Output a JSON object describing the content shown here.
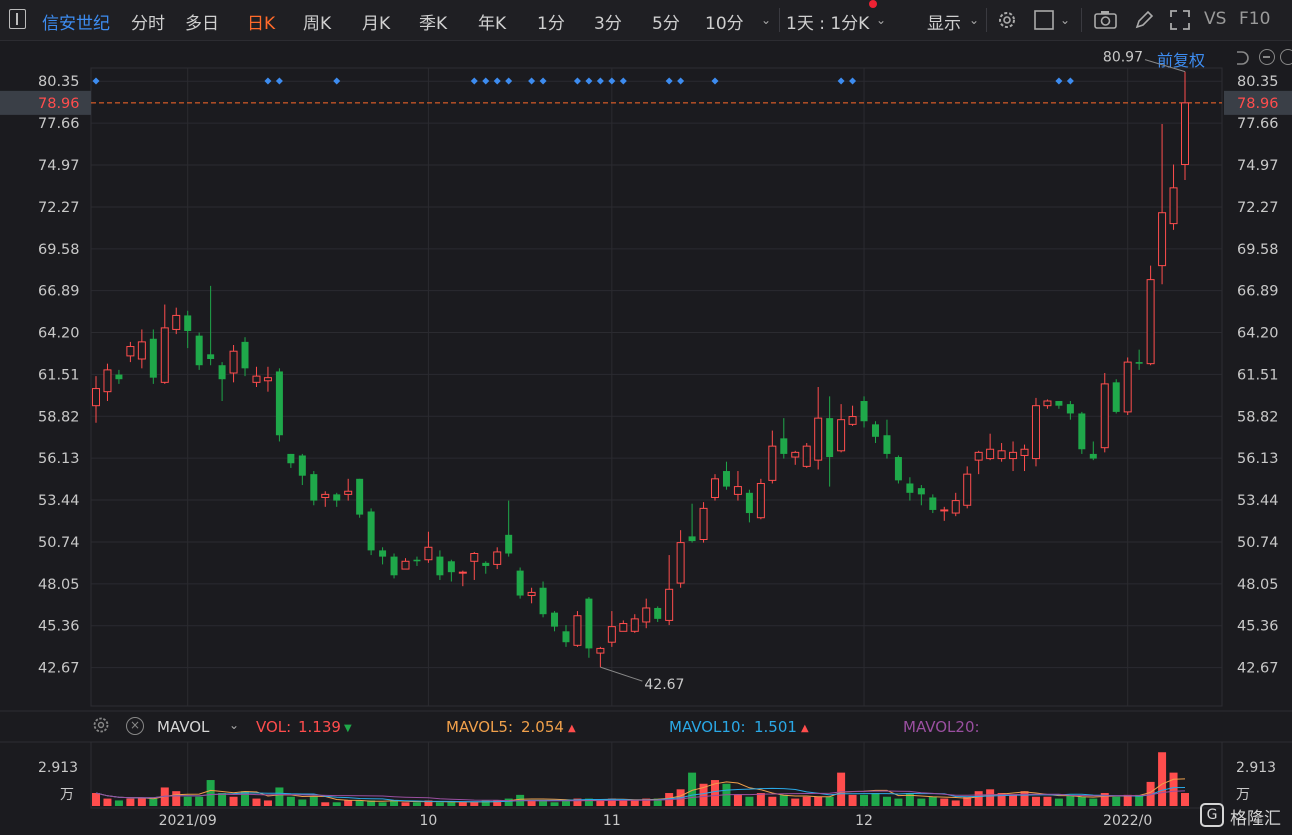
{
  "toolbar": {
    "stock_name": "信安世纪",
    "periods": [
      "分时",
      "多日",
      "日K",
      "周K",
      "月K",
      "季K",
      "年K",
      "1分",
      "3分",
      "5分",
      "10分"
    ],
    "active_period": "日K",
    "interval_selector": "1天 : 1分K",
    "display_label": "显示",
    "vs_label": "VS",
    "f10_label": "F10"
  },
  "adjust_label": "前复权",
  "volume_panel": {
    "indicator": "MAVOL",
    "vol_label": "VOL:",
    "vol_value": "1.139",
    "mavol5_label": "MAVOL5:",
    "mavol5_value": "2.054",
    "mavol10_label": "MAVOL10:",
    "mavol10_value": "1.501",
    "mavol20_label": "MAVOL20:",
    "unit_top": "2.913",
    "unit_bottom": "万",
    "colors": {
      "vol": "#ff4d4d",
      "mavol5": "#f0a04b",
      "mavol10": "#2aa8e6",
      "mavol20": "#9a4fa0"
    }
  },
  "logo_text": "格隆汇",
  "chart_data": {
    "type": "candlestick",
    "y_ticks": [
      "80.35",
      "77.66",
      "74.97",
      "72.27",
      "69.58",
      "66.89",
      "64.20",
      "61.51",
      "58.82",
      "56.13",
      "53.44",
      "50.74",
      "48.05",
      "45.36",
      "42.67"
    ],
    "ylim": [
      40.2,
      83.0
    ],
    "current_price": "78.96",
    "high_label": "80.97",
    "low_label": "42.67",
    "x_ticks": [
      "2021/09",
      "10",
      "11",
      "12",
      "2022/0"
    ],
    "x_tick_candle_index": [
      8,
      29,
      45,
      67,
      90
    ],
    "up_color": "#ff4d4d",
    "down_color": "#1fa84a",
    "candles": [
      [
        59.5,
        60.6,
        58.4,
        61.4
      ],
      [
        60.4,
        61.8,
        59.8,
        62.2
      ],
      [
        61.5,
        61.2,
        60.9,
        61.8
      ],
      [
        62.7,
        63.3,
        62.3,
        63.6
      ],
      [
        62.5,
        63.6,
        61.9,
        64.4
      ],
      [
        63.8,
        61.3,
        60.9,
        64.4
      ],
      [
        61.0,
        64.5,
        60.9,
        66.0
      ],
      [
        64.4,
        65.3,
        64.1,
        65.8
      ],
      [
        65.3,
        64.3,
        63.2,
        65.6
      ],
      [
        64.0,
        62.1,
        61.8,
        64.2
      ],
      [
        62.8,
        62.5,
        62.1,
        67.2
      ],
      [
        62.1,
        61.2,
        59.8,
        62.3
      ],
      [
        61.6,
        63.0,
        61.0,
        63.4
      ],
      [
        63.6,
        61.9,
        61.4,
        63.9
      ],
      [
        61.0,
        61.4,
        60.7,
        62.0
      ],
      [
        61.1,
        61.3,
        60.4,
        62.0
      ],
      [
        61.7,
        57.6,
        57.2,
        61.9
      ],
      [
        56.4,
        55.8,
        55.5,
        56.4
      ],
      [
        56.3,
        55.0,
        54.4,
        56.4
      ],
      [
        55.1,
        53.4,
        53.1,
        55.3
      ],
      [
        53.6,
        53.8,
        53.0,
        54.0
      ],
      [
        53.8,
        53.4,
        53.0,
        53.9
      ],
      [
        53.8,
        54.0,
        53.4,
        54.8
      ],
      [
        54.8,
        52.5,
        52.3,
        54.8
      ],
      [
        52.7,
        50.2,
        49.9,
        52.9
      ],
      [
        50.2,
        49.8,
        49.3,
        50.4
      ],
      [
        49.8,
        48.6,
        48.4,
        50.0
      ],
      [
        49.0,
        49.5,
        49.0,
        49.7
      ],
      [
        49.6,
        49.5,
        49.2,
        49.8
      ],
      [
        49.6,
        50.4,
        49.4,
        51.4
      ],
      [
        49.8,
        48.6,
        48.3,
        50.2
      ],
      [
        49.5,
        48.8,
        48.2,
        49.6
      ],
      [
        48.8,
        48.8,
        47.9,
        48.9
      ],
      [
        49.5,
        50.0,
        48.3,
        50.1
      ],
      [
        49.4,
        49.2,
        48.7,
        49.5
      ],
      [
        49.3,
        50.1,
        49.0,
        50.4
      ],
      [
        51.2,
        50.0,
        49.8,
        53.4
      ],
      [
        48.9,
        47.3,
        47.1,
        49.1
      ],
      [
        47.3,
        47.5,
        46.8,
        47.8
      ],
      [
        47.8,
        46.1,
        45.9,
        48.2
      ],
      [
        46.2,
        45.3,
        45.0,
        46.3
      ],
      [
        45.0,
        44.3,
        44.0,
        45.4
      ],
      [
        44.1,
        46.0,
        44.0,
        46.3
      ],
      [
        47.1,
        43.9,
        43.3,
        47.2
      ],
      [
        43.6,
        43.9,
        42.7,
        44.0
      ],
      [
        44.3,
        45.3,
        44.0,
        46.3
      ],
      [
        45.0,
        45.5,
        45.0,
        45.7
      ],
      [
        45.0,
        45.8,
        44.9,
        46.1
      ],
      [
        45.6,
        46.5,
        45.2,
        47.1
      ],
      [
        46.5,
        45.8,
        45.6,
        46.6
      ],
      [
        45.7,
        47.7,
        45.4,
        49.9
      ],
      [
        48.1,
        50.7,
        47.8,
        51.5
      ],
      [
        51.1,
        50.8,
        50.7,
        53.2
      ],
      [
        50.9,
        52.9,
        50.7,
        53.3
      ],
      [
        53.6,
        54.8,
        53.4,
        55.1
      ],
      [
        55.3,
        54.3,
        54.1,
        55.9
      ],
      [
        53.8,
        54.3,
        53.4,
        55.3
      ],
      [
        53.9,
        52.6,
        52.0,
        54.1
      ],
      [
        52.3,
        54.5,
        52.2,
        54.8
      ],
      [
        54.7,
        56.9,
        54.5,
        57.9
      ],
      [
        57.4,
        56.4,
        56.1,
        58.7
      ],
      [
        56.2,
        56.5,
        55.7,
        56.6
      ],
      [
        55.6,
        56.9,
        55.5,
        57.1
      ],
      [
        56.0,
        58.7,
        55.4,
        60.7
      ],
      [
        58.7,
        56.2,
        54.3,
        60.1
      ],
      [
        56.6,
        58.6,
        56.5,
        59.6
      ],
      [
        58.3,
        58.8,
        58.2,
        59.5
      ],
      [
        59.8,
        58.5,
        58.1,
        60.1
      ],
      [
        58.3,
        57.5,
        57.1,
        58.5
      ],
      [
        57.6,
        56.4,
        56.1,
        58.6
      ],
      [
        56.2,
        54.7,
        54.5,
        56.3
      ],
      [
        54.5,
        53.9,
        53.4,
        54.9
      ],
      [
        54.2,
        53.8,
        53.1,
        54.4
      ],
      [
        53.6,
        52.8,
        52.6,
        53.8
      ],
      [
        52.8,
        52.8,
        52.1,
        53.0
      ],
      [
        52.6,
        53.4,
        52.4,
        53.9
      ],
      [
        53.1,
        55.1,
        52.9,
        55.6
      ],
      [
        56.0,
        56.5,
        55.1,
        56.6
      ],
      [
        56.1,
        56.7,
        56.0,
        57.7
      ],
      [
        56.1,
        56.6,
        55.9,
        57.1
      ],
      [
        56.1,
        56.5,
        55.3,
        57.2
      ],
      [
        56.3,
        56.7,
        55.3,
        57.0
      ],
      [
        56.1,
        59.5,
        55.6,
        60.0
      ],
      [
        59.5,
        59.8,
        59.3,
        59.9
      ],
      [
        59.8,
        59.5,
        59.3,
        59.8
      ],
      [
        59.6,
        59.0,
        58.6,
        59.8
      ],
      [
        59.0,
        56.7,
        56.4,
        59.1
      ],
      [
        56.4,
        56.1,
        56.0,
        57.2
      ],
      [
        56.8,
        60.9,
        56.5,
        61.6
      ],
      [
        61.0,
        59.1,
        59.0,
        61.2
      ],
      [
        59.1,
        62.3,
        58.9,
        62.6
      ],
      [
        62.3,
        62.2,
        61.8,
        63.1
      ],
      [
        62.2,
        67.6,
        62.1,
        68.5
      ],
      [
        68.5,
        71.9,
        67.3,
        77.6
      ],
      [
        71.2,
        73.5,
        70.8,
        75.0
      ],
      [
        75.0,
        78.96,
        74.0,
        80.97
      ]
    ],
    "volume": [
      0.7,
      0.4,
      0.3,
      0.4,
      0.45,
      0.4,
      1.0,
      0.8,
      0.5,
      0.5,
      1.4,
      0.7,
      0.5,
      0.8,
      0.4,
      0.3,
      1.0,
      0.5,
      0.35,
      0.5,
      0.2,
      0.2,
      0.3,
      0.3,
      0.3,
      0.2,
      0.3,
      0.2,
      0.2,
      0.3,
      0.2,
      0.2,
      0.2,
      0.2,
      0.3,
      0.3,
      0.4,
      0.6,
      0.3,
      0.3,
      0.2,
      0.3,
      0.4,
      0.4,
      0.3,
      0.4,
      0.3,
      0.3,
      0.4,
      0.4,
      0.7,
      0.9,
      1.8,
      1.2,
      1.4,
      1.2,
      0.6,
      0.5,
      0.7,
      0.5,
      0.6,
      0.4,
      0.5,
      0.5,
      0.5,
      1.8,
      0.6,
      0.6,
      0.7,
      0.5,
      0.4,
      0.7,
      0.4,
      0.5,
      0.4,
      0.3,
      0.5,
      0.8,
      0.9,
      0.7,
      0.6,
      0.8,
      0.5,
      0.5,
      0.4,
      0.6,
      0.5,
      0.4,
      0.7,
      0.5,
      0.6,
      0.6,
      1.3,
      2.9,
      1.8,
      0.7
    ]
  }
}
